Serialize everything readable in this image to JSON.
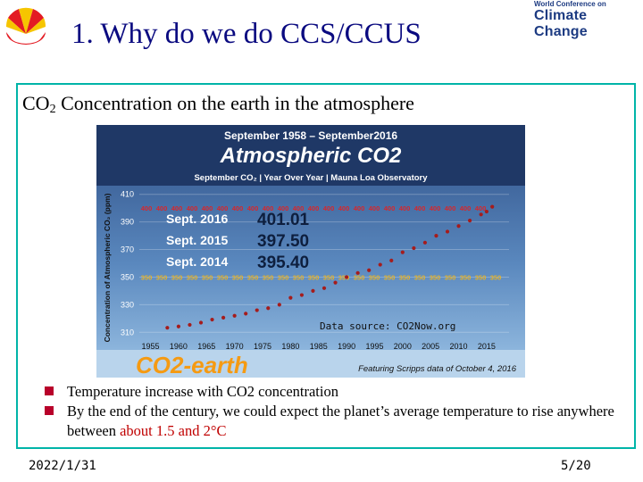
{
  "header": {
    "title": "1. Why do we do CCS/CCUS",
    "conference_small": "World Conference on",
    "conference_big": "Climate Change"
  },
  "slide": {
    "subtitle_prefix": "CO",
    "subtitle_sub": "2",
    "subtitle_rest": " Concentration on the earth in the atmosphere"
  },
  "chart_data": {
    "type": "line",
    "title": "Atmospheric CO2",
    "top_banner": "September 1958 – September2016",
    "subtitle": "September CO₂ | Year Over Year | Mauna Loa Observatory",
    "ylabel": "Concentration of Atmospheric CO₂ (ppm)",
    "ylim": [
      305,
      415
    ],
    "yticks": [
      310,
      330,
      350,
      370,
      390,
      410
    ],
    "xticks": [
      1955,
      1960,
      1965,
      1970,
      1975,
      1980,
      1985,
      1990,
      1995,
      2000,
      2005,
      2010,
      2015
    ],
    "x": [
      1958,
      1960,
      1962,
      1964,
      1966,
      1968,
      1970,
      1972,
      1974,
      1976,
      1978,
      1980,
      1982,
      1984,
      1986,
      1988,
      1990,
      1992,
      1994,
      1996,
      1998,
      2000,
      2002,
      2004,
      2006,
      2008,
      2010,
      2012,
      2014,
      2015,
      2016
    ],
    "values": [
      313.3,
      314.2,
      315.4,
      317.0,
      319.2,
      320.6,
      322.0,
      323.5,
      326.0,
      327.5,
      330.0,
      335.0,
      337.0,
      340.0,
      342.0,
      346.0,
      350.0,
      353.0,
      355.0,
      359.0,
      362.0,
      368.0,
      371.0,
      375.0,
      380.0,
      383.0,
      387.0,
      391.0,
      395.4,
      397.5,
      401.0
    ],
    "readings": [
      {
        "label": "Sept. 2016",
        "value": "401.01"
      },
      {
        "label": "Sept. 2015",
        "value": "397.50"
      },
      {
        "label": "Sept. 2014",
        "value": "395.40"
      }
    ],
    "band_400": "400",
    "band_350": "350",
    "source_note": "Data source: CO2Now.org",
    "brand": "CO2-earth",
    "footer_note": "Featuring Scripps data of October 4, 2016"
  },
  "bullets": [
    {
      "text": "Temperature increase with CO2 concentration",
      "highlight": ""
    },
    {
      "text": "By the end of the century, we could expect the planet’s average temperature to rise anywhere between ",
      "highlight": "about 1.5 and 2°C"
    }
  ],
  "footer": {
    "date": "2022/1/31",
    "page": "5/20"
  },
  "colors": {
    "title": "#0a0a80",
    "frame": "#00b4a8",
    "bullet": "#b8002a",
    "chart_bg": "#3c6aa2",
    "band_400": "#d7262b",
    "band_350": "#e8b327",
    "data_line": "#a51c1c"
  }
}
